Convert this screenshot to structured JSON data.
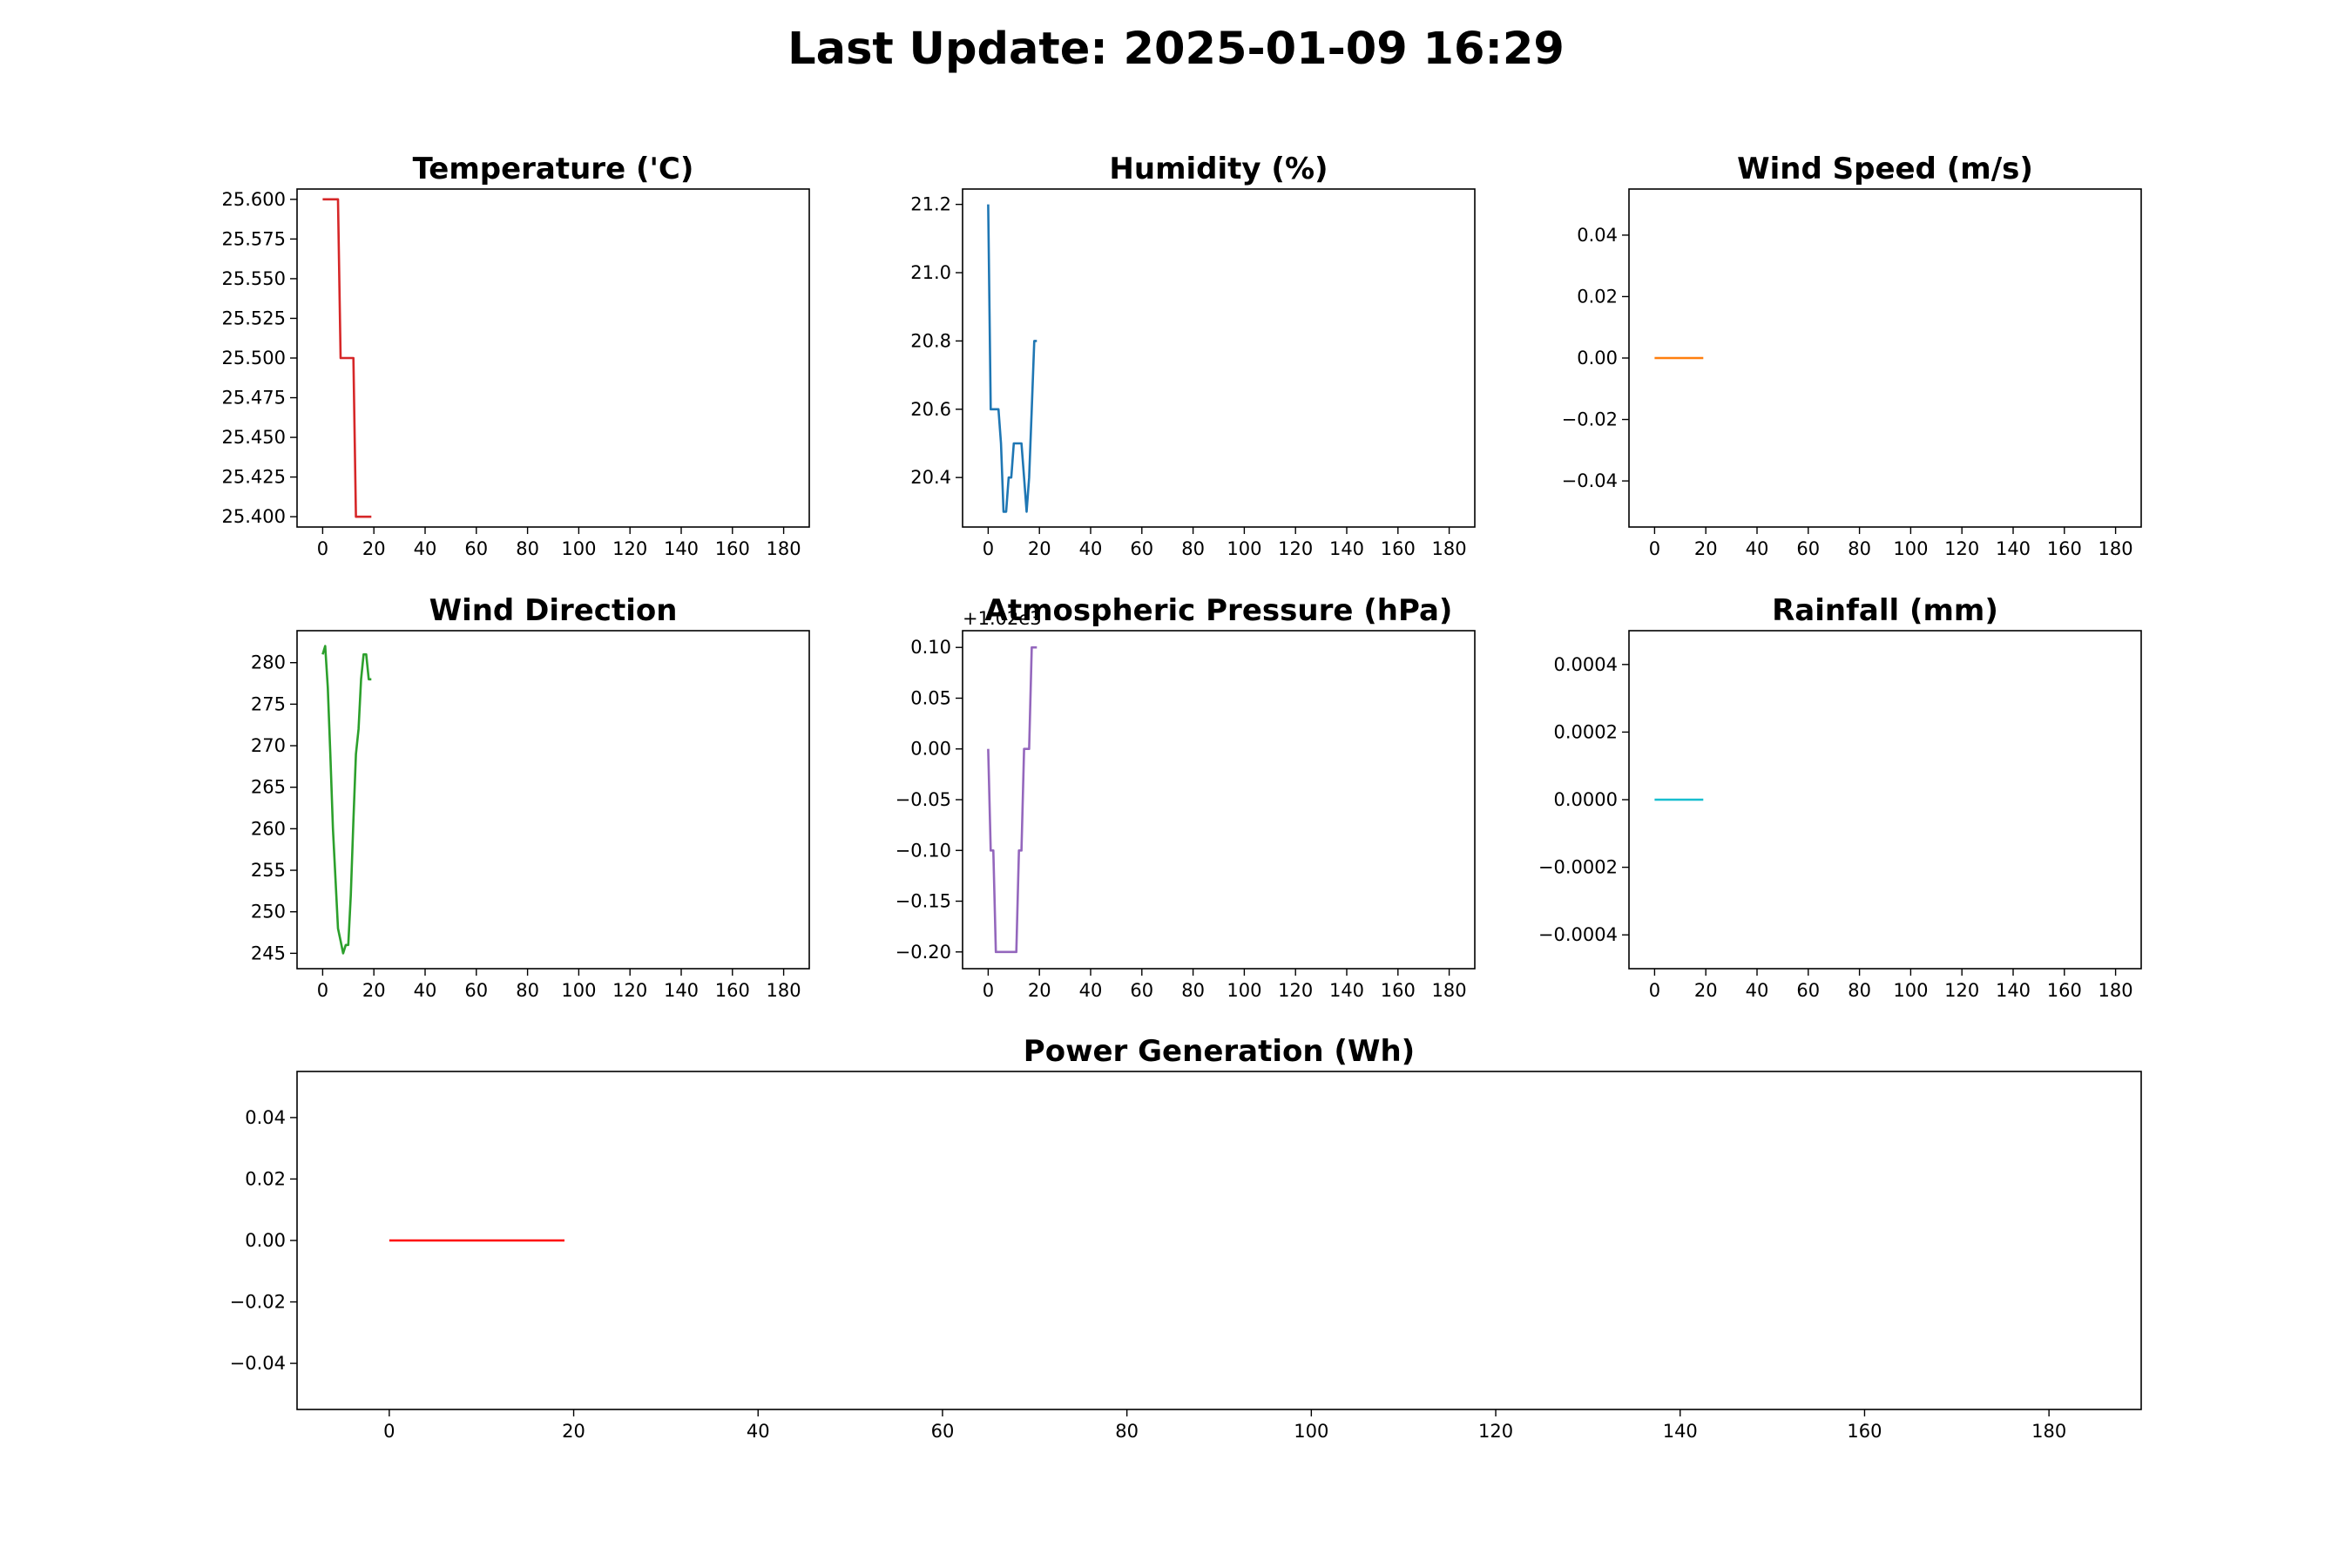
{
  "page": {
    "title": "Last Update: 2025-01-09 16:29"
  },
  "chart_data": [
    {
      "type": "line",
      "title": "Temperature ('C)",
      "color": "#d62728",
      "xlim": [
        -10,
        190
      ],
      "ylim": [
        25.3935,
        25.6065
      ],
      "xticks": [
        0,
        20,
        40,
        60,
        80,
        100,
        120,
        140,
        160,
        180
      ],
      "yticks": [
        25.4,
        25.425,
        25.45,
        25.475,
        25.5,
        25.525,
        25.55,
        25.575,
        25.6
      ],
      "ytick_labels": [
        "25.400",
        "25.425",
        "25.450",
        "25.475",
        "25.500",
        "25.525",
        "25.550",
        "25.575",
        "25.600"
      ],
      "x": [
        0,
        1,
        2,
        3,
        4,
        5,
        6,
        7,
        8,
        9,
        10,
        11,
        12,
        13,
        14,
        15,
        16,
        17,
        18,
        19
      ],
      "y": [
        25.6,
        25.6,
        25.6,
        25.6,
        25.6,
        25.6,
        25.6,
        25.5,
        25.5,
        25.5,
        25.5,
        25.5,
        25.5,
        25.4,
        25.4,
        25.4,
        25.4,
        25.4,
        25.4,
        25.4
      ]
    },
    {
      "type": "line",
      "title": "Humidity (%)",
      "color": "#1f77b4",
      "xlim": [
        -10,
        190
      ],
      "ylim": [
        20.255,
        21.245
      ],
      "xticks": [
        0,
        20,
        40,
        60,
        80,
        100,
        120,
        140,
        160,
        180
      ],
      "yticks": [
        20.4,
        20.6,
        20.8,
        21.0,
        21.2
      ],
      "ytick_labels": [
        "20.4",
        "20.6",
        "20.8",
        "21.0",
        "21.2"
      ],
      "x": [
        0,
        1,
        2,
        3,
        4,
        5,
        6,
        7,
        8,
        9,
        10,
        11,
        12,
        13,
        14,
        15,
        16,
        17,
        18,
        19
      ],
      "y": [
        21.2,
        20.6,
        20.6,
        20.6,
        20.6,
        20.5,
        20.3,
        20.3,
        20.4,
        20.4,
        20.5,
        20.5,
        20.5,
        20.5,
        20.4,
        20.3,
        20.4,
        20.6,
        20.8,
        20.8
      ]
    },
    {
      "type": "line",
      "title": "Wind Speed (m/s)",
      "color": "#ff7f0e",
      "xlim": [
        -10,
        190
      ],
      "ylim": [
        -0.055,
        0.055
      ],
      "xticks": [
        0,
        20,
        40,
        60,
        80,
        100,
        120,
        140,
        160,
        180
      ],
      "yticks": [
        -0.04,
        -0.02,
        0,
        0.02,
        0.04
      ],
      "ytick_labels": [
        "−0.04",
        "−0.02",
        "0.00",
        "0.02",
        "0.04"
      ],
      "x": [
        0,
        1,
        2,
        3,
        4,
        5,
        6,
        7,
        8,
        9,
        10,
        11,
        12,
        13,
        14,
        15,
        16,
        17,
        18,
        19
      ],
      "y": [
        0,
        0,
        0,
        0,
        0,
        0,
        0,
        0,
        0,
        0,
        0,
        0,
        0,
        0,
        0,
        0,
        0,
        0,
        0,
        0
      ]
    },
    {
      "type": "line",
      "title": "Wind Direction",
      "color": "#2ca02c",
      "xlim": [
        -10,
        190
      ],
      "ylim": [
        243.15,
        283.85
      ],
      "xticks": [
        0,
        20,
        40,
        60,
        80,
        100,
        120,
        140,
        160,
        180
      ],
      "yticks": [
        245,
        250,
        255,
        260,
        265,
        270,
        275,
        280
      ],
      "ytick_labels": [
        "245",
        "250",
        "255",
        "260",
        "265",
        "270",
        "275",
        "280"
      ],
      "x": [
        0,
        1,
        2,
        3,
        4,
        5,
        6,
        7,
        8,
        9,
        10,
        11,
        12,
        13,
        14,
        15,
        16,
        17,
        18,
        19
      ],
      "y": [
        281,
        282,
        277,
        269,
        260,
        254,
        248,
        246.5,
        245,
        246,
        246,
        252,
        261,
        269,
        272,
        278,
        281,
        281,
        278,
        278
      ]
    },
    {
      "type": "line",
      "title": "Atmospheric Pressure (hPa)",
      "color": "#9467bd",
      "offset_label": "+1.02e3",
      "xlim": [
        -10,
        190
      ],
      "ylim": [
        -0.2165,
        0.1165
      ],
      "xticks": [
        0,
        20,
        40,
        60,
        80,
        100,
        120,
        140,
        160,
        180
      ],
      "yticks": [
        -0.2,
        -0.15,
        -0.1,
        -0.05,
        0,
        0.05,
        0.1
      ],
      "ytick_labels": [
        "−0.20",
        "−0.15",
        "−0.10",
        "−0.05",
        "0.00",
        "0.05",
        "0.10"
      ],
      "x": [
        0,
        1,
        2,
        3,
        4,
        5,
        6,
        7,
        8,
        9,
        10,
        11,
        12,
        13,
        14,
        15,
        16,
        17,
        18,
        19
      ],
      "y": [
        0,
        -0.1,
        -0.1,
        -0.2,
        -0.2,
        -0.2,
        -0.2,
        -0.2,
        -0.2,
        -0.2,
        -0.2,
        -0.2,
        -0.1,
        -0.1,
        0,
        0,
        0,
        0.1,
        0.1,
        0.1
      ]
    },
    {
      "type": "line",
      "title": "Rainfall (mm)",
      "color": "#17becf",
      "xlim": [
        -10,
        190
      ],
      "ylim": [
        -0.0005,
        0.0005
      ],
      "xticks": [
        0,
        20,
        40,
        60,
        80,
        100,
        120,
        140,
        160,
        180
      ],
      "yticks": [
        -0.0004,
        -0.0002,
        0,
        0.0002,
        0.0004
      ],
      "ytick_labels": [
        "−0.0004",
        "−0.0002",
        "0.0000",
        "0.0002",
        "0.0004"
      ],
      "x": [
        0,
        1,
        2,
        3,
        4,
        5,
        6,
        7,
        8,
        9,
        10,
        11,
        12,
        13,
        14,
        15,
        16,
        17,
        18,
        19
      ],
      "y": [
        0,
        0,
        0,
        0,
        0,
        0,
        0,
        0,
        0,
        0,
        0,
        0,
        0,
        0,
        0,
        0,
        0,
        0,
        0,
        0
      ]
    },
    {
      "type": "line",
      "title": "Power Generation (Wh)",
      "color": "#ff0000",
      "xlim": [
        -10,
        190
      ],
      "ylim": [
        -0.055,
        0.055
      ],
      "xticks": [
        0,
        20,
        40,
        60,
        80,
        100,
        120,
        140,
        160,
        180
      ],
      "yticks": [
        -0.04,
        -0.02,
        0,
        0.02,
        0.04
      ],
      "ytick_labels": [
        "−0.04",
        "−0.02",
        "0.00",
        "0.02",
        "0.04"
      ],
      "x": [
        0,
        1,
        2,
        3,
        4,
        5,
        6,
        7,
        8,
        9,
        10,
        11,
        12,
        13,
        14,
        15,
        16,
        17,
        18,
        19
      ],
      "y": [
        0,
        0,
        0,
        0,
        0,
        0,
        0,
        0,
        0,
        0,
        0,
        0,
        0,
        0,
        0,
        0,
        0,
        0,
        0,
        0
      ]
    }
  ]
}
